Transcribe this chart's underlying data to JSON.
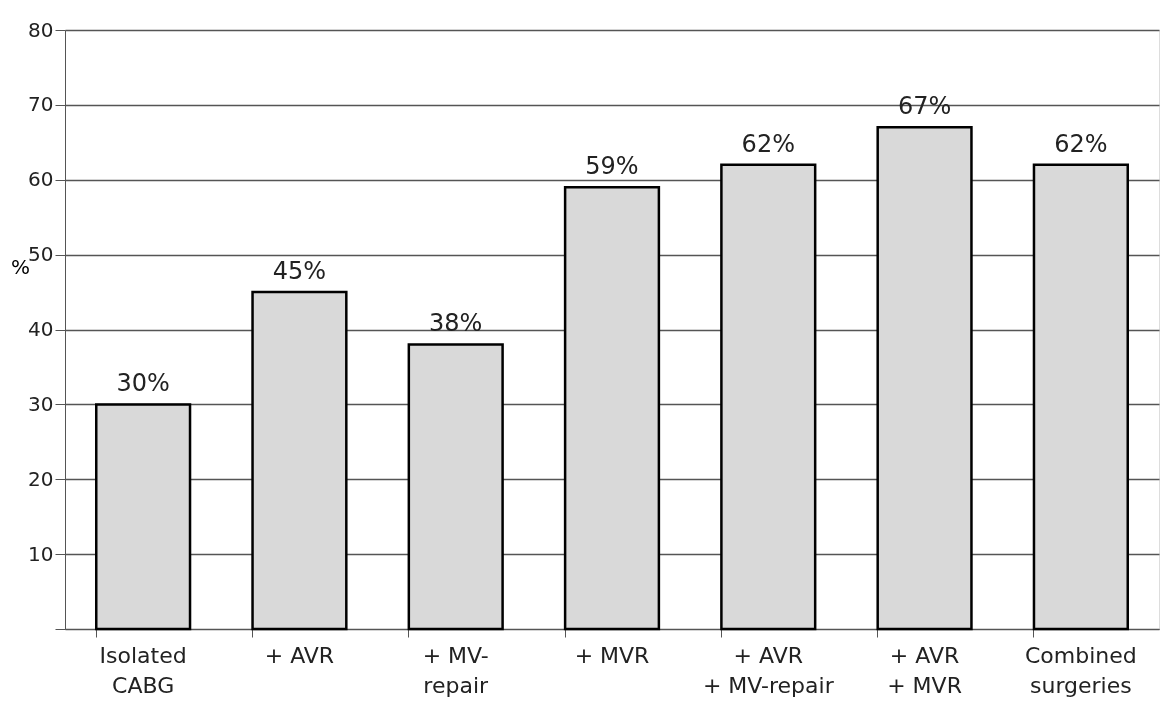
{
  "chart_data": {
    "type": "bar",
    "categories": [
      "Isolated\nCABG",
      "+ AVR",
      "+ MV-\nrepair",
      "+ MVR",
      "+ AVR\n+ MV-repair",
      "+ AVR\n+ MVR",
      "Combined\nsurgeries"
    ],
    "values": [
      30,
      45,
      38,
      59,
      62,
      67,
      62
    ],
    "value_labels": [
      "30%",
      "45%",
      "38%",
      "59%",
      "62%",
      "67%",
      "62%"
    ],
    "color": "#d9d9d9",
    "ylabel": "%",
    "ylim": [
      0,
      80
    ],
    "yticks": [
      {
        "value": 0,
        "label": null
      },
      10,
      20,
      30,
      40,
      50,
      60,
      70,
      80
    ],
    "grid": "y"
  }
}
